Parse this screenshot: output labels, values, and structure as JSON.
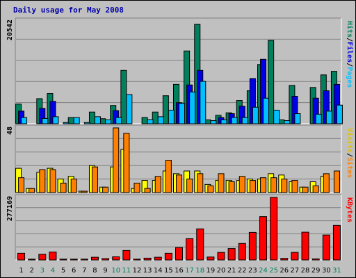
{
  "title": "Daily usage for May 2008",
  "chart_data": [
    {
      "type": "bar",
      "categories": [
        "1",
        "2",
        "3",
        "4",
        "5",
        "6",
        "7",
        "8",
        "9",
        "10",
        "11",
        "12",
        "13",
        "14",
        "15",
        "16",
        "17",
        "18",
        "19",
        "20",
        "21",
        "22",
        "23",
        "24",
        "25",
        "26",
        "27",
        "28",
        "29",
        "30",
        "31"
      ],
      "y_max_label": "20542",
      "ylim": [
        0,
        20542
      ],
      "series": [
        {
          "name": "Hits",
          "color": "#00805c",
          "values": [
            3920,
            0,
            5000,
            6025,
            0,
            1235,
            0,
            2330,
            1000,
            3645,
            10650,
            0,
            1235,
            2330,
            5590,
            7860,
            14530,
            19840,
            780,
            1680,
            2180,
            4640,
            6580,
            11825,
            16630,
            780,
            7650,
            0,
            7240,
            9750,
            10460
          ]
        },
        {
          "name": "Files",
          "color": "#0000e5",
          "values": [
            2515,
            0,
            3045,
            4465,
            0,
            0,
            0,
            0,
            0,
            2625,
            0,
            0,
            0,
            0,
            0,
            4205,
            7740,
            10650,
            0,
            1235,
            2015,
            3490,
            9025,
            12865,
            0,
            0,
            5480,
            0,
            5100,
            6580,
            7860
          ]
        },
        {
          "name": "Pages",
          "color": "#00c0ff",
          "values": [
            1235,
            0,
            1055,
            1405,
            240,
            1235,
            240,
            1405,
            780,
            1235,
            5830,
            0,
            820,
            1405,
            2710,
            4070,
            6340,
            8460,
            620,
            780,
            1235,
            1235,
            3290,
            5100,
            2710,
            620,
            2015,
            0,
            1895,
            2515,
            3715
          ]
        }
      ],
      "legend": [
        "Pages",
        "Files",
        "Hits"
      ]
    },
    {
      "type": "bar",
      "categories": [
        "1",
        "2",
        "3",
        "4",
        "5",
        "6",
        "7",
        "8",
        "9",
        "10",
        "11",
        "12",
        "13",
        "14",
        "15",
        "16",
        "17",
        "18",
        "19",
        "20",
        "21",
        "22",
        "23",
        "24",
        "25",
        "26",
        "27",
        "28",
        "29",
        "30",
        "31"
      ],
      "y_max_label": "48",
      "ylim": [
        0,
        48
      ],
      "series": [
        {
          "name": "Visits",
          "color": "#ffff00",
          "values": [
            18,
            3,
            15,
            18,
            10,
            12,
            1,
            20,
            4,
            19,
            32,
            3,
            9,
            9,
            16,
            14,
            16,
            16,
            6,
            9,
            9,
            9,
            10,
            10,
            14,
            13,
            8,
            4,
            8,
            12,
            0
          ]
        },
        {
          "name": "Sites",
          "color": "#ff8000",
          "values": [
            11,
            3,
            17,
            17,
            7,
            10,
            1,
            19,
            4,
            48,
            44,
            7,
            3,
            12,
            24,
            13,
            10,
            14,
            5,
            14,
            8,
            12,
            9,
            11,
            11,
            10,
            9,
            4,
            5,
            14,
            16
          ]
        }
      ],
      "legend": [
        "Sites",
        "Visits"
      ]
    },
    {
      "type": "bar",
      "categories": [
        "1",
        "2",
        "3",
        "4",
        "5",
        "6",
        "7",
        "8",
        "9",
        "10",
        "11",
        "12",
        "13",
        "14",
        "15",
        "16",
        "17",
        "18",
        "19",
        "20",
        "21",
        "22",
        "23",
        "24",
        "25",
        "26",
        "27",
        "28",
        "29",
        "30",
        "31"
      ],
      "y_max_label": "277169",
      "ylim": [
        0,
        277169
      ],
      "series": [
        {
          "name": "KBytes",
          "color": "#ff0000",
          "values": [
            29650,
            3500,
            25000,
            35000,
            3500,
            3500,
            3500,
            12000,
            6000,
            14000,
            42000,
            3500,
            8000,
            12000,
            29650,
            55000,
            94200,
            137700,
            13000,
            33500,
            50500,
            73000,
            122000,
            192000,
            277169,
            7000,
            33500,
            123000,
            4500,
            110500,
            153000
          ]
        }
      ],
      "legend": [
        "KBytes"
      ]
    }
  ]
}
